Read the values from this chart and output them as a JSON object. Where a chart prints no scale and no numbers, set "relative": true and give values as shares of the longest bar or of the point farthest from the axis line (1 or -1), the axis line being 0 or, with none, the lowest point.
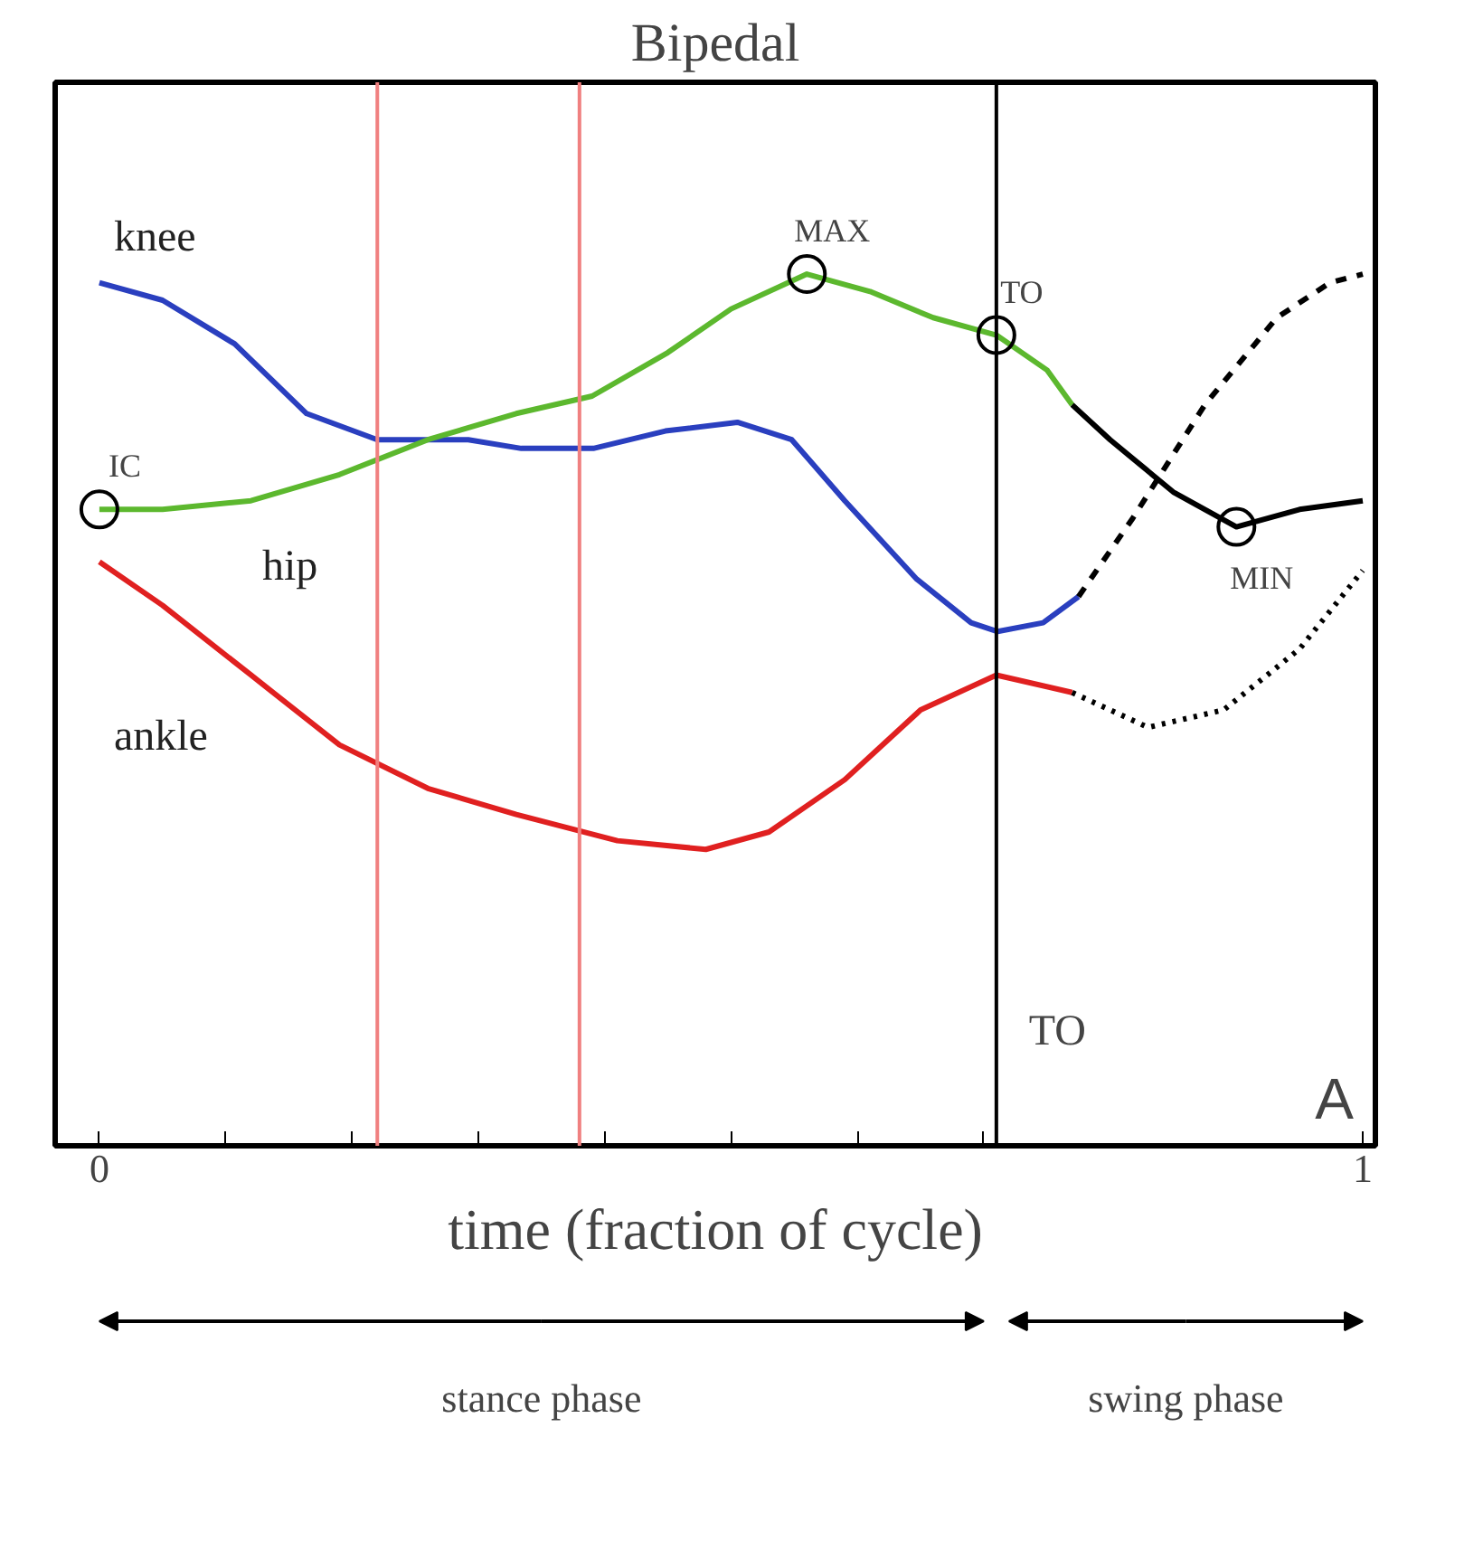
{
  "chart_data": {
    "type": "line",
    "title": "Bipedal",
    "xlabel": "time (fraction of cycle)",
    "relative": true,
    "xlim": [
      -0.035,
      1.01
    ],
    "xticks": [
      0,
      {
        "value": 0.1,
        "label": null
      },
      {
        "value": 0.2,
        "label": null
      },
      {
        "value": 0.3,
        "label": null
      },
      {
        "value": 0.4,
        "label": null
      },
      {
        "value": 0.5,
        "label": null
      },
      {
        "value": 0.6,
        "label": null
      },
      {
        "value": 0.7,
        "label": null
      },
      1
    ],
    "grid": false,
    "series": [
      {
        "name": "knee",
        "color": "#2a3fbf",
        "x": [
          0,
          0.05,
          0.107,
          0.164,
          0.22,
          0.292,
          0.334,
          0.391,
          0.448,
          0.505,
          0.548,
          0.59,
          0.647,
          0.69,
          0.711,
          0.747,
          0.775
        ],
        "values": [
          0.99,
          0.97,
          0.92,
          0.84,
          0.81,
          0.81,
          0.8,
          0.8,
          0.82,
          0.83,
          0.81,
          0.74,
          0.65,
          0.6,
          0.59,
          0.6,
          0.63
        ]
      },
      {
        "color": "#000000",
        "line_style": "dashed",
        "x": [
          0.775,
          0.818,
          0.875,
          0.932,
          0.974,
          1.0
        ],
        "values": [
          0.63,
          0.72,
          0.85,
          0.95,
          0.99,
          1.0
        ]
      },
      {
        "name": "hip",
        "color": "#5cb82e",
        "x": [
          0,
          0.05,
          0.12,
          0.19,
          0.26,
          0.33,
          0.39,
          0.45,
          0.5,
          0.56,
          0.61,
          0.66,
          0.71,
          0.75,
          0.77
        ],
        "values": [
          0.73,
          0.73,
          0.74,
          0.77,
          0.81,
          0.84,
          0.86,
          0.91,
          0.96,
          1.0,
          0.98,
          0.95,
          0.93,
          0.89,
          0.85
        ]
      },
      {
        "color": "#000000",
        "line_style": "solid",
        "x": [
          0.77,
          0.8,
          0.85,
          0.9,
          0.95,
          1.0
        ],
        "values": [
          0.85,
          0.81,
          0.75,
          0.71,
          0.73,
          0.74
        ]
      },
      {
        "name": "ankle",
        "color": "#e02020",
        "x": [
          0,
          0.05,
          0.12,
          0.19,
          0.26,
          0.33,
          0.41,
          0.48,
          0.53,
          0.59,
          0.65,
          0.71,
          0.77
        ],
        "values": [
          0.67,
          0.62,
          0.54,
          0.46,
          0.41,
          0.38,
          0.35,
          0.34,
          0.36,
          0.42,
          0.5,
          0.54,
          0.52
        ]
      },
      {
        "color": "#000000",
        "line_style": "dotted",
        "x": [
          0.77,
          0.83,
          0.89,
          0.95,
          1.0
        ],
        "values": [
          0.52,
          0.48,
          0.5,
          0.57,
          0.66
        ]
      }
    ],
    "ref_lines": [
      {
        "axis": "x",
        "value": 0.22,
        "color": "#f08080"
      },
      {
        "axis": "x",
        "value": 0.38,
        "color": "#f08080"
      },
      {
        "axis": "x",
        "value": 0.71,
        "label": "TO",
        "color": "#000000"
      }
    ],
    "annotations": [
      {
        "text": "IC",
        "x": 0,
        "y": 0.73
      },
      {
        "text": "MAX",
        "x": 0.56,
        "y": 1.0
      },
      {
        "text": "TO",
        "x": 0.71,
        "y": 0.93
      },
      {
        "text": "MIN",
        "x": 0.9,
        "y": 0.71
      },
      "A",
      "stance phase",
      "swing phase"
    ]
  }
}
